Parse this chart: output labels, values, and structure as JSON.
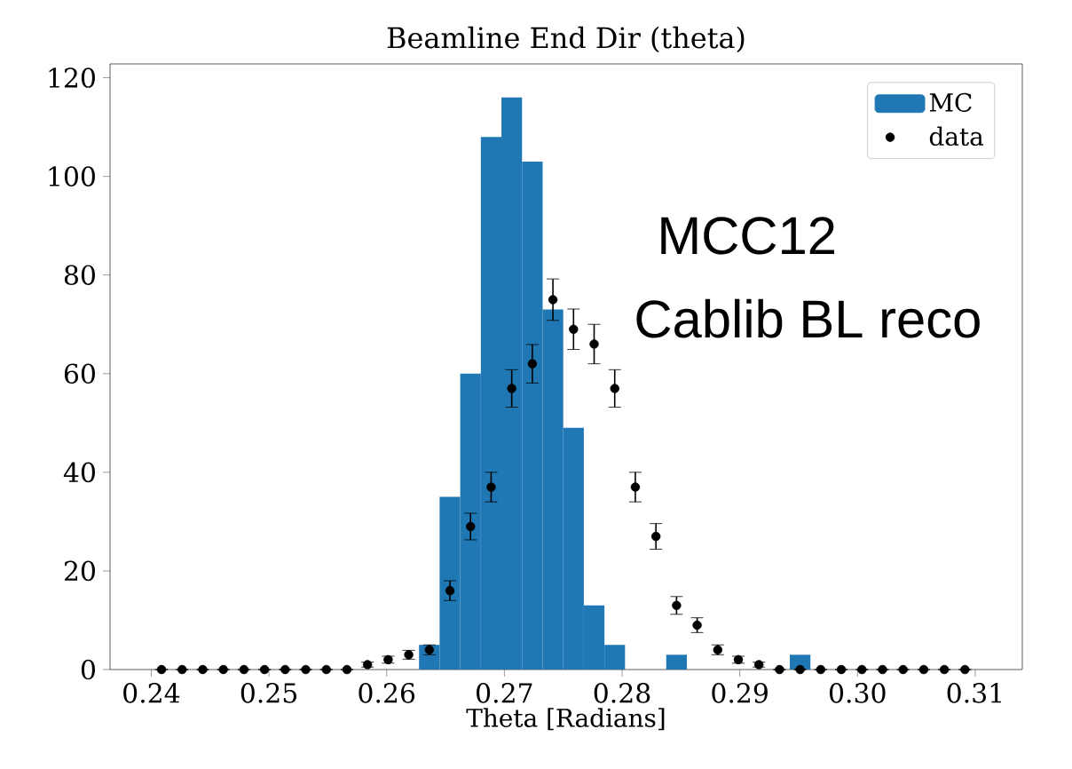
{
  "chart_data": {
    "type": "histogram",
    "title": "Beamline End Dir (theta)",
    "xlabel": "Theta [Radians]",
    "annotations": [
      "MCC12",
      "Cablib BL reco"
    ],
    "xlim": [
      0.2365,
      0.314
    ],
    "ylim": [
      0,
      122.8
    ],
    "xticks": [
      0.24,
      0.25,
      0.26,
      0.27,
      0.28,
      0.29,
      {
        "value": 0.3,
        "label": "0.30"
      },
      0.31
    ],
    "yticks": [
      0,
      20,
      40,
      60,
      80,
      100,
      120
    ],
    "legend": "top right",
    "series": [
      {
        "name": "MC",
        "color": "#1f77b4",
        "bins": [
          0.24,
          0.24175,
          0.2435,
          0.24525,
          0.247,
          0.24875,
          0.2505,
          0.25225,
          0.254,
          0.25575,
          0.2575,
          0.25925,
          0.261,
          0.26275,
          0.2645,
          0.26625,
          0.268,
          0.26975,
          0.2715,
          0.27325,
          0.275,
          0.27675,
          0.2785,
          0.28025,
          0.282,
          0.28375,
          0.2855,
          0.28725,
          0.289,
          0.29075,
          0.2925,
          0.29425,
          0.296,
          0.29775,
          0.2995,
          0.30125,
          0.303,
          0.30475,
          0.3065,
          0.30825,
          0.31
        ],
        "values": [
          0,
          0,
          0,
          0,
          0,
          0,
          0,
          0,
          0,
          0,
          0,
          0,
          0,
          5,
          35,
          60,
          108,
          116,
          103,
          73,
          49,
          13,
          5,
          0,
          0,
          3,
          0,
          0,
          0,
          0,
          0,
          3,
          0,
          0,
          0,
          0,
          0,
          0,
          0,
          0
        ]
      },
      {
        "name": "data",
        "type": "scatter",
        "color": "#000000",
        "x": [
          0.240875,
          0.242625,
          0.244375,
          0.246125,
          0.247875,
          0.249625,
          0.251375,
          0.253125,
          0.254875,
          0.256625,
          0.258375,
          0.260125,
          0.261875,
          0.263625,
          0.265375,
          0.267125,
          0.268875,
          0.270625,
          0.272375,
          0.274125,
          0.275875,
          0.277625,
          0.279375,
          0.281125,
          0.282875,
          0.284625,
          0.286375,
          0.288125,
          0.289875,
          0.291625,
          0.293375,
          0.295125,
          0.296875,
          0.298625,
          0.300375,
          0.302125,
          0.303875,
          0.305625,
          0.307375,
          0.309125
        ],
        "values": [
          0,
          0,
          0,
          0,
          0,
          0,
          0,
          0,
          0,
          0,
          1,
          2,
          3,
          4,
          16,
          29,
          37,
          57,
          62,
          75,
          69,
          66,
          57,
          37,
          27,
          13,
          9,
          4,
          2,
          1,
          0,
          0,
          0,
          0,
          0,
          0,
          0,
          0,
          0,
          0
        ],
        "errors": [
          null,
          null,
          null,
          null,
          null,
          null,
          null,
          null,
          null,
          null,
          0.5,
          0.7,
          0.9,
          1,
          2,
          2.7,
          3,
          3.8,
          3.9,
          4.2,
          4.1,
          4,
          3.8,
          3,
          2.6,
          1.8,
          1.5,
          1,
          0.7,
          0.5,
          null,
          null,
          null,
          null,
          null,
          null,
          null,
          null,
          null,
          null
        ]
      }
    ]
  }
}
